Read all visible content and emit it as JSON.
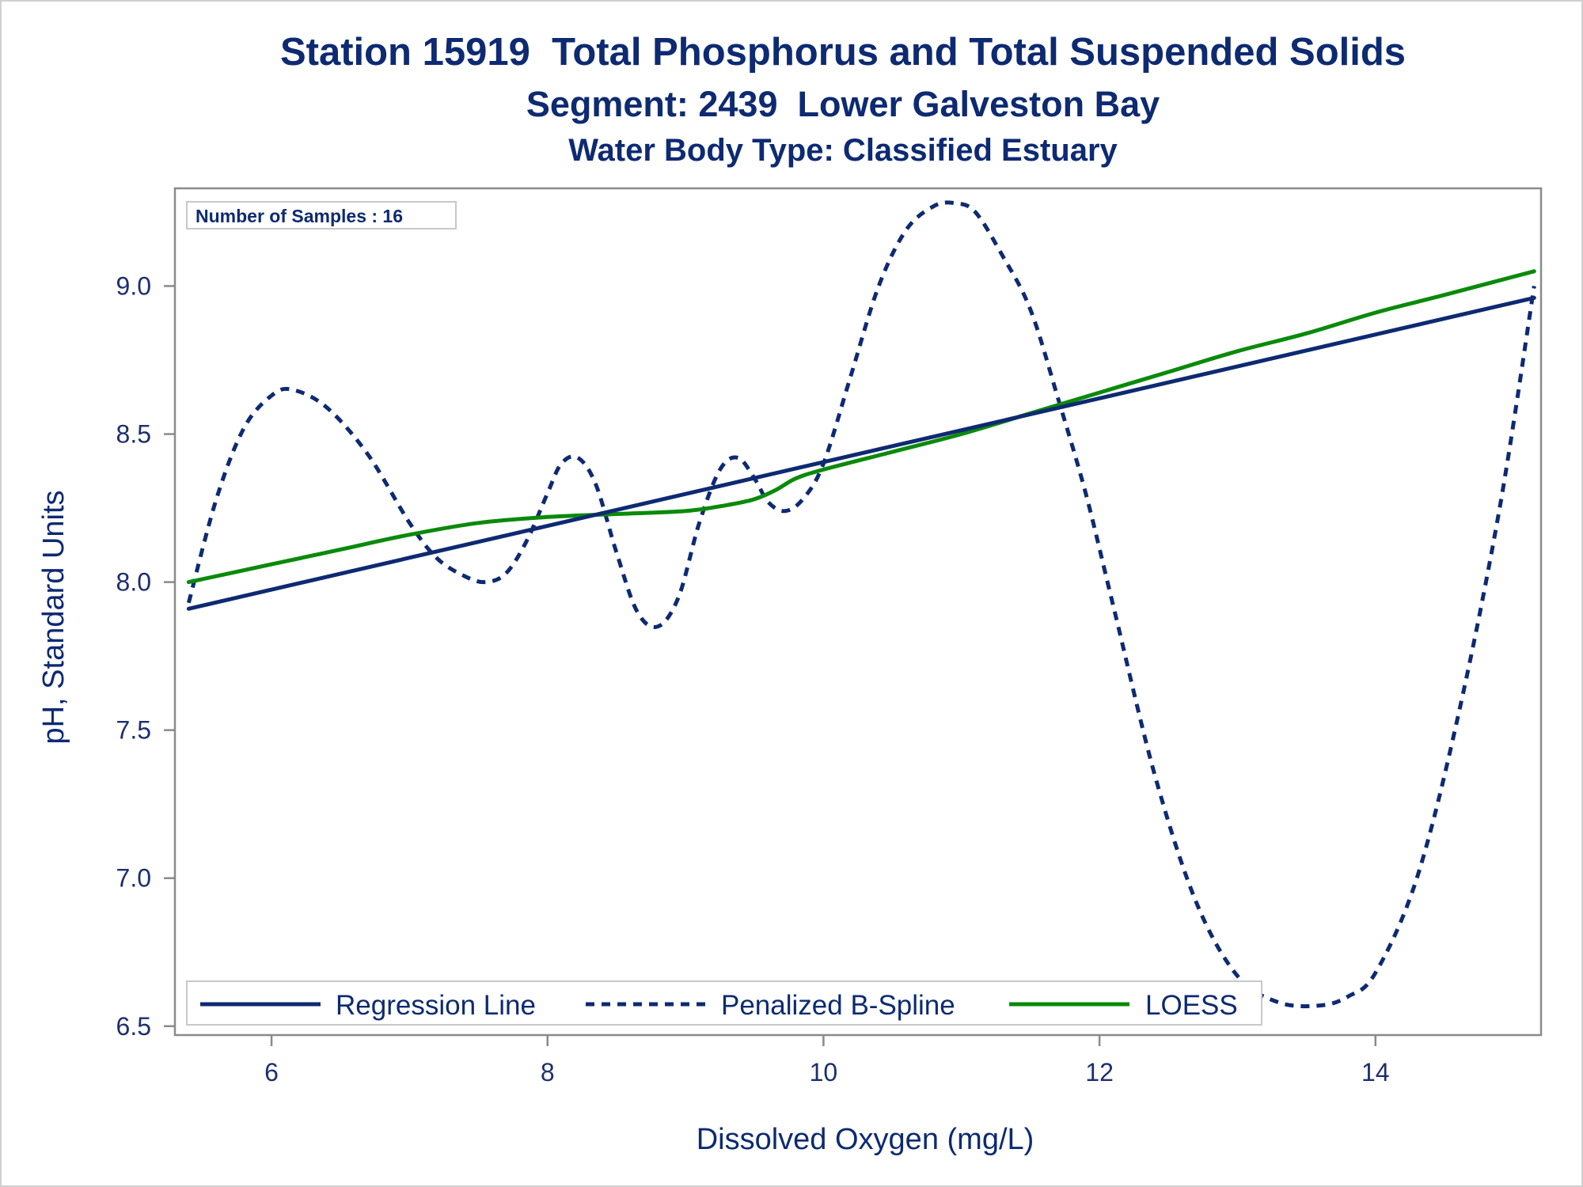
{
  "titles": {
    "line1": "Station 15919  Total Phosphorus and Total Suspended Solids",
    "line2": "Segment: 2439  Lower Galveston Bay",
    "line3": "Water Body Type: Classified Estuary"
  },
  "inset_label": "Number of Samples : 16",
  "colors": {
    "navy": "#0d2a72",
    "green": "#0a8a0a",
    "axis": "#8a8a8a"
  },
  "chart_data": {
    "type": "line",
    "xlabel": "Dissolved Oxygen (mg/L)",
    "ylabel": "pH, Standard Units",
    "xlim": [
      5.3,
      15.2
    ],
    "ylim": [
      6.47,
      9.33
    ],
    "xticks": [
      6,
      8,
      10,
      12,
      14
    ],
    "xtick_labels": [
      "6",
      "8",
      "10",
      "12",
      "14"
    ],
    "yticks": [
      6.5,
      7.0,
      7.5,
      8.0,
      8.5,
      9.0
    ],
    "ytick_labels": [
      "6.5",
      "7.0",
      "7.5",
      "8.0",
      "8.5",
      "9.0"
    ],
    "grid": false,
    "legend_position": "bottom-left",
    "series": [
      {
        "name": "Regression Line",
        "style": "solid",
        "color": "#0d2a72",
        "x": [
          5.4,
          15.15
        ],
        "y": [
          7.91,
          8.96
        ]
      },
      {
        "name": "Penalized B-Spline",
        "style": "dashed",
        "color": "#0d2a72",
        "x": [
          5.4,
          5.6,
          5.8,
          6.0,
          6.15,
          6.4,
          6.7,
          7.0,
          7.2,
          7.4,
          7.55,
          7.7,
          7.85,
          8.0,
          8.1,
          8.22,
          8.35,
          8.5,
          8.65,
          8.8,
          8.95,
          9.1,
          9.25,
          9.38,
          9.5,
          9.6,
          9.72,
          9.85,
          10.0,
          10.2,
          10.4,
          10.6,
          10.8,
          10.95,
          11.1,
          11.3,
          11.5,
          11.7,
          11.9,
          12.1,
          12.4,
          12.7,
          13.0,
          13.3,
          13.6,
          13.8,
          14.0,
          14.3,
          14.6,
          14.9,
          15.15
        ],
        "y": [
          7.93,
          8.28,
          8.52,
          8.63,
          8.65,
          8.59,
          8.43,
          8.2,
          8.08,
          8.02,
          8.0,
          8.03,
          8.14,
          8.3,
          8.4,
          8.42,
          8.33,
          8.1,
          7.9,
          7.85,
          7.95,
          8.2,
          8.38,
          8.42,
          8.35,
          8.27,
          8.24,
          8.28,
          8.4,
          8.7,
          9.0,
          9.19,
          9.27,
          9.28,
          9.25,
          9.1,
          8.92,
          8.62,
          8.3,
          7.92,
          7.35,
          6.92,
          6.67,
          6.58,
          6.57,
          6.6,
          6.68,
          7.0,
          7.55,
          8.25,
          9.0
        ]
      },
      {
        "name": "LOESS",
        "style": "solid",
        "color": "#0a8a0a",
        "x": [
          5.4,
          6.0,
          6.5,
          7.0,
          7.5,
          8.0,
          8.5,
          9.0,
          9.3,
          9.5,
          9.65,
          9.8,
          10.0,
          10.5,
          11.0,
          11.5,
          12.0,
          12.5,
          13.0,
          13.5,
          14.0,
          14.5,
          15.15
        ],
        "y": [
          8.0,
          8.06,
          8.11,
          8.16,
          8.2,
          8.22,
          8.23,
          8.24,
          8.26,
          8.28,
          8.31,
          8.35,
          8.38,
          8.44,
          8.5,
          8.57,
          8.64,
          8.71,
          8.78,
          8.84,
          8.91,
          8.97,
          9.05
        ]
      }
    ]
  }
}
